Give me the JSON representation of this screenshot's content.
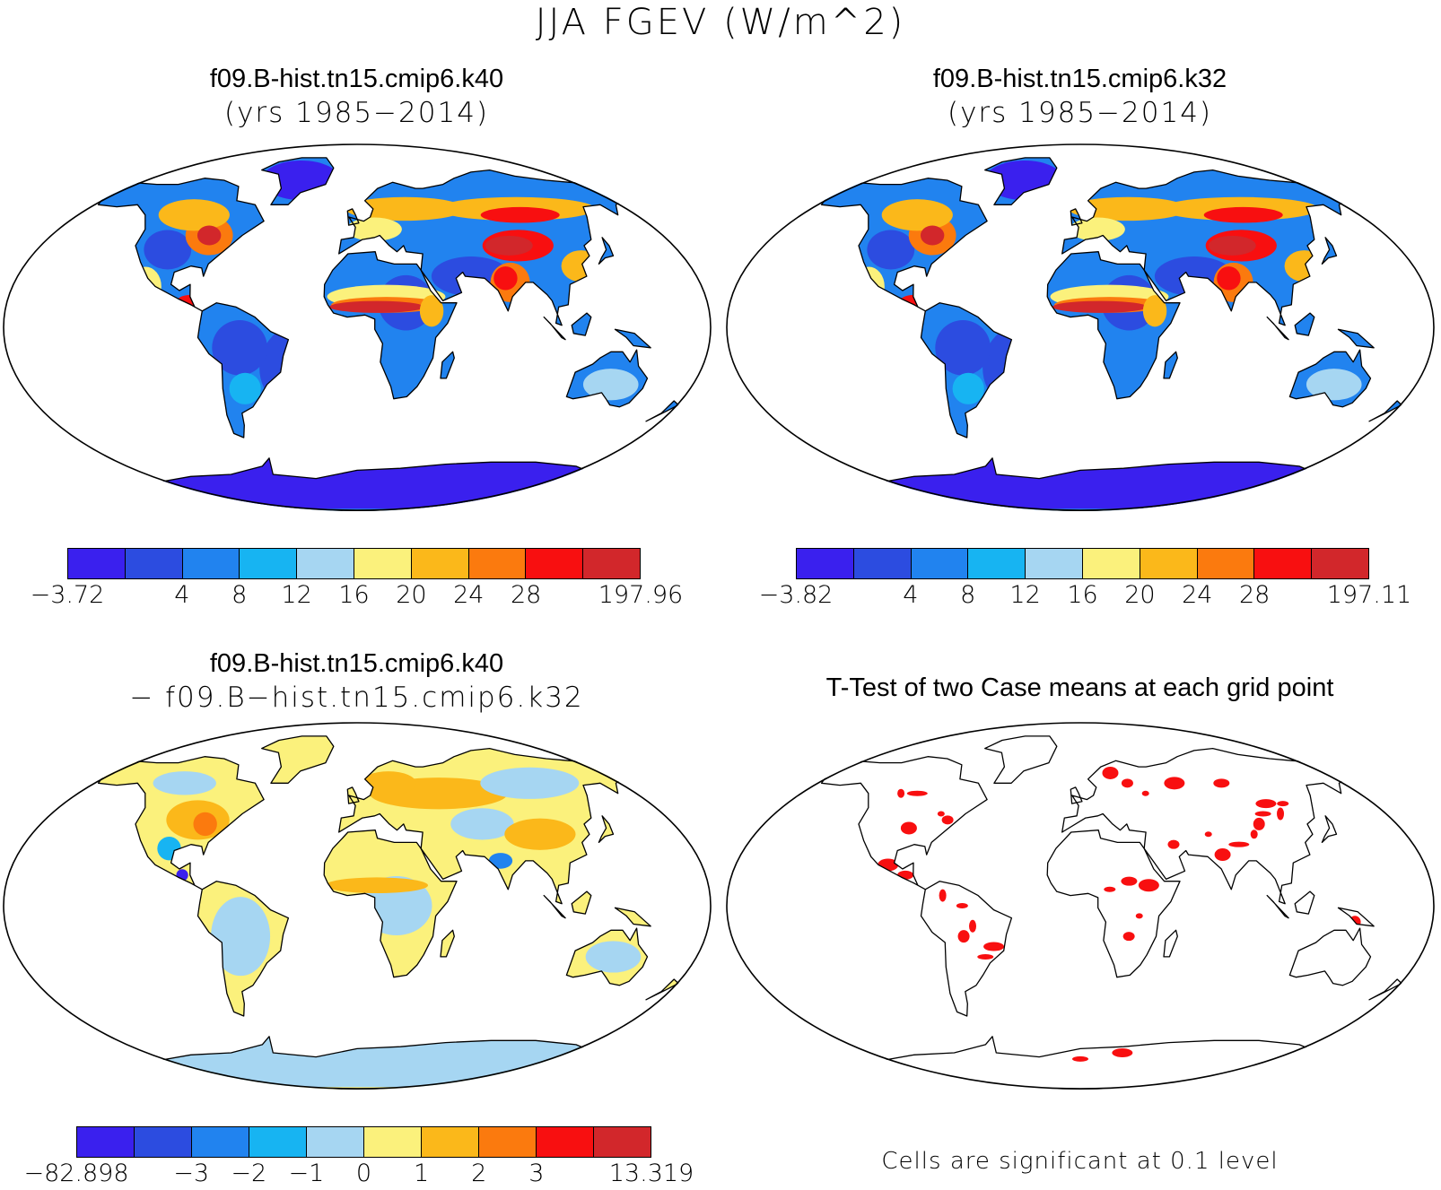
{
  "figure": {
    "main_title": "JJA FGEV (W/m^2)"
  },
  "panels": {
    "top_left": {
      "title_line1": "f09.B-hist.tn15.cmip6.k40",
      "title_line2": "(yrs 1985−2014)",
      "colorbar": {
        "colors": [
          "#3a20ee",
          "#2c4ce0",
          "#2183ef",
          "#17b4f2",
          "#a6d6f2",
          "#fbf17c",
          "#fbb81a",
          "#fb7a0e",
          "#f80f10",
          "#d2272b"
        ],
        "tick_labels": [
          "−3.72",
          "4",
          "8",
          "12",
          "16",
          "20",
          "24",
          "28",
          "197.96"
        ]
      }
    },
    "top_right": {
      "title_line1": "f09.B-hist.tn15.cmip6.k32",
      "title_line2": "(yrs 1985−2014)",
      "colorbar": {
        "colors": [
          "#3a20ee",
          "#2c4ce0",
          "#2183ef",
          "#17b4f2",
          "#a6d6f2",
          "#fbf17c",
          "#fbb81a",
          "#fb7a0e",
          "#f80f10",
          "#d2272b"
        ],
        "tick_labels": [
          "−3.82",
          "4",
          "8",
          "12",
          "16",
          "20",
          "24",
          "28",
          "197.11"
        ]
      }
    },
    "bottom_left": {
      "title_line1": "f09.B-hist.tn15.cmip6.k40",
      "title_line2": "− f09.B−hist.tn15.cmip6.k32",
      "colorbar": {
        "colors": [
          "#3a20ee",
          "#2c4ce0",
          "#2183ef",
          "#17b4f2",
          "#a6d6f2",
          "#fbf17c",
          "#fbb81a",
          "#fb7a0e",
          "#f80f10",
          "#d2272b"
        ],
        "tick_labels": [
          "−82.898",
          "−3",
          "−2",
          "−1",
          "0",
          "1",
          "2",
          "3",
          "13.319"
        ]
      }
    },
    "bottom_right": {
      "title_line1": "T-Test of two Case means at each grid point",
      "note": "Cells are significant at 0.1 level",
      "significance_color": "#f80f10"
    }
  }
}
